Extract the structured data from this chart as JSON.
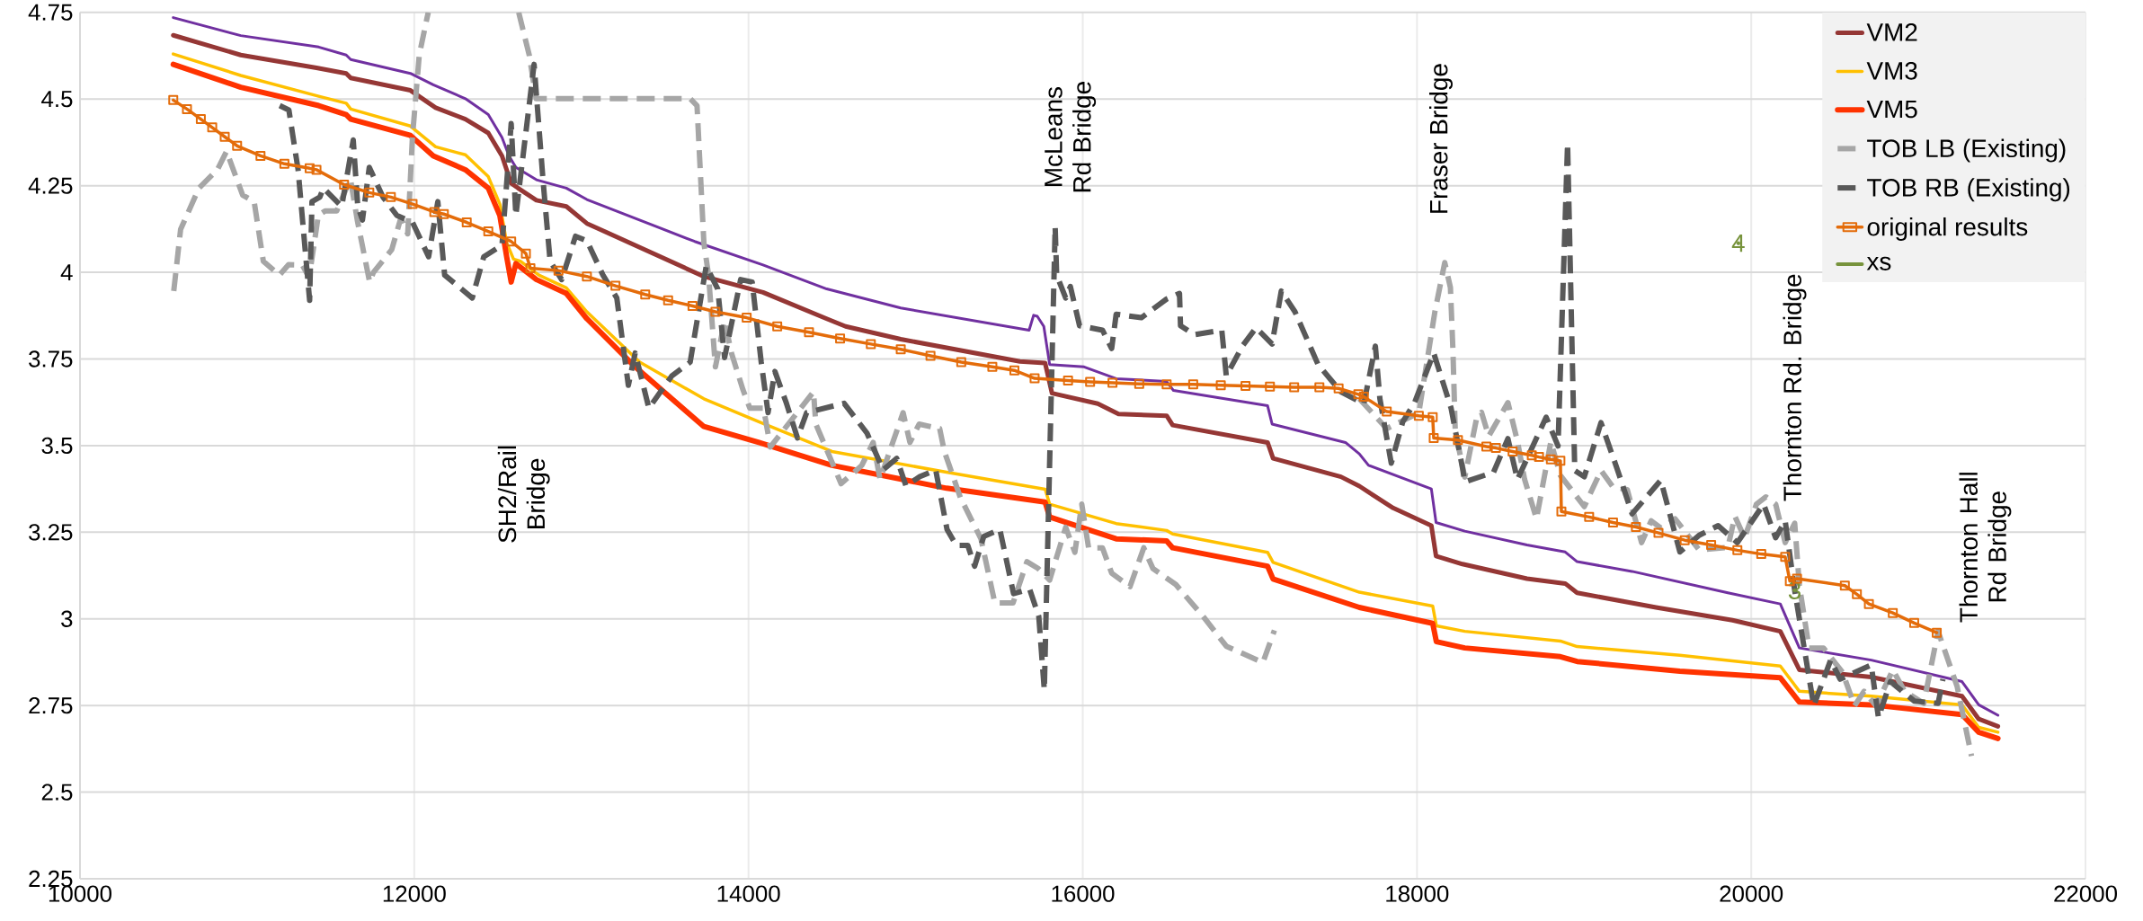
{
  "chart_data": {
    "type": "line",
    "xlim": [
      10000,
      22000
    ],
    "xticks": [
      10000,
      12000,
      14000,
      16000,
      18000,
      20000,
      22000
    ],
    "ylim": [
      2.25,
      4.75
    ],
    "yticks": [
      2.25,
      2.5,
      2.75,
      3,
      3.25,
      3.5,
      3.75,
      4,
      4.25,
      4.5,
      4.75
    ],
    "grid": true,
    "legend": "top right",
    "series": [
      {
        "color": "#7030a0",
        "line_style": "solid",
        "marker": "none",
        "x": [
          10558,
          10962,
          11428,
          11593,
          11620,
          11977,
          12114,
          12306,
          12443,
          12525,
          12567,
          12608,
          12731,
          12910,
          13033,
          13678,
          14087,
          14468,
          14911,
          15679,
          15706,
          15728,
          15767,
          15802,
          16008,
          16200,
          16502,
          16543,
          17106,
          17133,
          17572,
          17655,
          17710,
          18086,
          18114,
          18286,
          18658,
          18887,
          18958,
          19287,
          19860,
          20174,
          20288,
          20718,
          21261,
          21361,
          21476
        ],
        "values": [
          4.735,
          4.683,
          4.65,
          4.627,
          4.614,
          4.574,
          4.541,
          4.501,
          4.455,
          4.389,
          4.336,
          4.303,
          4.267,
          4.243,
          4.21,
          4.089,
          4.021,
          3.952,
          3.897,
          3.833,
          3.876,
          3.873,
          3.844,
          3.734,
          3.727,
          3.693,
          3.685,
          3.659,
          3.615,
          3.562,
          3.509,
          3.476,
          3.443,
          3.375,
          3.278,
          3.253,
          3.213,
          3.193,
          3.165,
          3.137,
          3.075,
          3.043,
          2.916,
          2.881,
          2.819,
          2.752,
          2.722
        ]
      },
      {
        "name": "VM2",
        "color": "#953735",
        "line_style": "solid",
        "marker": "none",
        "x": [
          10558,
          10962,
          11415,
          11593,
          11620,
          11977,
          12128,
          12306,
          12443,
          12525,
          12580,
          12621,
          12731,
          12910,
          13033,
          13733,
          14087,
          14468,
          14581,
          14911,
          15624,
          15775,
          15816,
          16090,
          16214,
          16502,
          16538,
          17106,
          17139,
          17545,
          17655,
          17857,
          18086,
          18114,
          18272,
          18658,
          18887,
          18958,
          19430,
          19888,
          20174,
          20288,
          20718,
          21261,
          21361,
          21476
        ],
        "values": [
          4.684,
          4.627,
          4.59,
          4.574,
          4.561,
          4.525,
          4.475,
          4.442,
          4.402,
          4.336,
          4.257,
          4.243,
          4.208,
          4.19,
          4.141,
          3.988,
          3.942,
          3.866,
          3.844,
          3.807,
          3.743,
          3.738,
          3.651,
          3.621,
          3.591,
          3.586,
          3.559,
          3.509,
          3.463,
          3.41,
          3.383,
          3.32,
          3.269,
          3.181,
          3.158,
          3.116,
          3.102,
          3.075,
          3.033,
          2.996,
          2.964,
          2.853,
          2.832,
          2.777,
          2.711,
          2.69
        ]
      },
      {
        "name": "VM3",
        "color": "#ffc000",
        "line_style": "solid",
        "marker": "none",
        "x": [
          10558,
          10962,
          11428,
          11593,
          11620,
          11977,
          12128,
          12306,
          12443,
          12512,
          12553,
          12594,
          12635,
          12745,
          12910,
          13033,
          13349,
          13733,
          14062,
          14499,
          15185,
          15775,
          15802,
          16200,
          16502,
          16538,
          17106,
          17139,
          17655,
          18094,
          18116,
          18286,
          18858,
          18958,
          19573,
          20174,
          20288,
          20718,
          21261,
          21361,
          21476
        ],
        "values": [
          4.63,
          4.568,
          4.508,
          4.488,
          4.471,
          4.422,
          4.362,
          4.339,
          4.276,
          4.197,
          4.085,
          4.038,
          4.032,
          3.992,
          3.955,
          3.886,
          3.741,
          3.635,
          3.569,
          3.483,
          3.423,
          3.374,
          3.331,
          3.275,
          3.255,
          3.245,
          3.192,
          3.163,
          3.077,
          3.037,
          2.98,
          2.964,
          2.936,
          2.92,
          2.895,
          2.864,
          2.791,
          2.777,
          2.752,
          2.687,
          2.673
        ]
      },
      {
        "name": "VM5",
        "color": "#ff3300",
        "line_style": "solid",
        "marker": "none",
        "x": [
          10558,
          10962,
          11428,
          11593,
          11620,
          11977,
          12114,
          12306,
          12443,
          12512,
          12553,
          12580,
          12608,
          12731,
          12910,
          13033,
          13322,
          13733,
          14062,
          14499,
          15185,
          15775,
          15802,
          16200,
          16502,
          16538,
          17106,
          17139,
          17655,
          18094,
          18116,
          18286,
          18858,
          18958,
          19573,
          20174,
          20288,
          20718,
          21261,
          21361,
          21476
        ],
        "values": [
          4.6,
          4.534,
          4.481,
          4.455,
          4.442,
          4.395,
          4.336,
          4.296,
          4.243,
          4.164,
          4.045,
          3.972,
          4.025,
          3.979,
          3.939,
          3.866,
          3.727,
          3.555,
          3.509,
          3.443,
          3.377,
          3.337,
          3.294,
          3.231,
          3.225,
          3.205,
          3.152,
          3.115,
          3.033,
          2.987,
          2.934,
          2.916,
          2.891,
          2.877,
          2.849,
          2.83,
          2.76,
          2.752,
          2.724,
          2.673,
          2.655
        ]
      },
      {
        "name": "TOB LB (Existing)",
        "color": "#a6a6a6",
        "line_style": "dashed",
        "marker": "none",
        "x": [
          10561,
          10602,
          10712,
          10822,
          10877,
          10973,
          11042,
          11097,
          11193,
          11248,
          11330,
          11371,
          11426,
          11467,
          11536,
          11618,
          11659,
          11733,
          11755,
          11865,
          11920,
          11961,
          11989,
          12030,
          12076,
          12084,
          12350,
          12625,
          12688,
          12729,
          13651,
          13692,
          13733,
          13761,
          13802,
          13857,
          13898,
          13967,
          14008,
          14090,
          14131,
          14389,
          14403,
          14554,
          14678,
          14746,
          14787,
          14925,
          14966,
          15021,
          15144,
          15172,
          15268,
          15391,
          15474,
          15583,
          15666,
          15734,
          15802,
          15898,
          15953,
          15994,
          16035,
          16118,
          16173,
          16283,
          16365,
          16420,
          16557,
          16722,
          16859,
          17078,
          17147,
          17400,
          17655,
          17819,
          18011,
          18107,
          18166,
          18200,
          18215,
          18229,
          18286,
          18358,
          18386,
          18429,
          18544,
          18601,
          18644,
          18715,
          18801,
          18858,
          19001,
          19101,
          19173,
          19258,
          19344,
          19401,
          19459,
          19544,
          19688,
          19860,
          19902,
          19960,
          20031,
          20088,
          20146,
          20203,
          20260,
          20288,
          20346,
          20432,
          20546,
          20618,
          20675,
          20747,
          20847,
          20918,
          21032,
          21118,
          21232,
          21318
        ],
        "values": [
          3.946,
          4.124,
          4.243,
          4.296,
          4.349,
          4.223,
          4.204,
          4.032,
          3.992,
          4.022,
          4.021,
          3.985,
          4.164,
          4.177,
          4.177,
          4.27,
          4.151,
          3.972,
          3.999,
          4.065,
          4.157,
          4.111,
          4.389,
          4.627,
          4.733,
          4.75,
          null,
          4.75,
          4.627,
          4.501,
          4.501,
          4.481,
          4.085,
          3.992,
          3.727,
          3.86,
          3.767,
          3.661,
          3.608,
          3.608,
          3.496,
          3.655,
          3.562,
          3.39,
          3.443,
          3.509,
          3.403,
          3.595,
          3.509,
          3.562,
          3.549,
          3.483,
          3.35,
          3.231,
          3.046,
          3.046,
          3.165,
          3.145,
          3.112,
          3.264,
          3.192,
          3.331,
          3.205,
          3.205,
          3.132,
          3.093,
          3.205,
          3.145,
          3.099,
          3.006,
          2.921,
          2.874,
          2.967,
          null,
          3.635,
          3.549,
          3.595,
          3.886,
          4.028,
          3.956,
          3.776,
          3.541,
          3.409,
          3.582,
          3.596,
          3.527,
          3.624,
          3.513,
          3.402,
          3.289,
          3.511,
          3.414,
          3.324,
          3.428,
          3.38,
          3.373,
          3.22,
          3.283,
          3.262,
          3.289,
          3.199,
          3.206,
          3.296,
          3.234,
          3.331,
          3.352,
          3.331,
          3.22,
          3.276,
          3.096,
          2.916,
          2.916,
          2.846,
          2.749,
          2.791,
          2.749,
          2.853,
          2.791,
          2.756,
          2.964,
          2.805,
          2.604
        ]
      },
      {
        "name": "TOB RB (Existing)",
        "color": "#595959",
        "line_style": "dashed",
        "marker": "none",
        "x": [
          11195,
          11250,
          11305,
          11374,
          11388,
          11435,
          11456,
          11566,
          11635,
          11662,
          11690,
          11731,
          11813,
          11896,
          11990,
          12086,
          12141,
          12182,
          12347,
          12416,
          12525,
          12580,
          12608,
          12717,
          12772,
          12813,
          12882,
          12965,
          13033,
          13129,
          13212,
          13281,
          13322,
          13404,
          13541,
          13651,
          13747,
          13816,
          13857,
          13953,
          14022,
          14076,
          14117,
          14158,
          14227,
          14293,
          14348,
          14572,
          14709,
          14805,
          14887,
          14942,
          15024,
          15120,
          15188,
          15243,
          15312,
          15353,
          15408,
          15504,
          15586,
          15682,
          15737,
          15770,
          15835,
          15844,
          15898,
          15926,
          15981,
          16118,
          16173,
          16200,
          16351,
          16502,
          16579,
          16585,
          16667,
          16832,
          16859,
          16955,
          17037,
          17133,
          17188,
          17270,
          17408,
          17545,
          17682,
          17751,
          17778,
          17846,
          17915,
          17984,
          18100,
          18204,
          18272,
          18286,
          18458,
          18544,
          18601,
          18773,
          18844,
          18901,
          18944,
          19001,
          19101,
          19201,
          19287,
          19459,
          19573,
          19688,
          19802,
          19917,
          20074,
          20146,
          20203,
          20260,
          20374,
          20475,
          20532,
          20718,
          20761,
          20833,
          20975,
          21118,
          21147
        ],
        "values": [
          4.481,
          4.468,
          4.296,
          3.919,
          4.204,
          4.217,
          4.243,
          4.19,
          4.382,
          4.19,
          4.151,
          4.303,
          4.217,
          4.164,
          4.144,
          4.045,
          4.204,
          3.992,
          3.926,
          4.045,
          4.078,
          4.429,
          4.164,
          4.6,
          4.257,
          4.032,
          3.979,
          4.104,
          4.091,
          3.992,
          3.926,
          3.674,
          3.767,
          3.608,
          3.701,
          3.741,
          4.018,
          3.952,
          3.754,
          3.979,
          3.972,
          3.741,
          3.595,
          3.714,
          3.622,
          3.522,
          3.595,
          3.622,
          3.536,
          3.43,
          3.463,
          3.384,
          3.41,
          3.43,
          3.258,
          3.212,
          3.212,
          3.152,
          3.238,
          3.258,
          3.073,
          3.086,
          3.007,
          2.795,
          4.131,
          3.992,
          3.926,
          3.959,
          3.846,
          3.833,
          3.78,
          3.879,
          3.869,
          3.923,
          3.939,
          3.846,
          3.82,
          3.833,
          3.701,
          3.787,
          3.84,
          3.793,
          3.946,
          3.886,
          3.734,
          3.655,
          3.621,
          3.787,
          3.635,
          3.449,
          3.569,
          3.622,
          3.767,
          3.608,
          3.436,
          3.395,
          3.423,
          3.52,
          3.402,
          3.582,
          3.499,
          4.372,
          3.428,
          3.41,
          3.566,
          3.428,
          3.303,
          3.4,
          3.193,
          3.241,
          3.269,
          3.22,
          3.331,
          3.234,
          3.283,
          3.082,
          2.749,
          2.881,
          2.826,
          2.867,
          2.715,
          2.819,
          2.763,
          2.756,
          2.826
        ]
      },
      {
        "name": "original results",
        "color": "#e46c0a",
        "line_style": "solid",
        "marker": "square",
        "x": [
          10558,
          10640,
          10723,
          10791,
          10866,
          10940,
          11080,
          11223,
          11374,
          11415,
          11580,
          11731,
          11860,
          11990,
          12120,
          12177,
          12314,
          12443,
          12580,
          12668,
          12695,
          12863,
          13033,
          13204,
          13382,
          13519,
          13665,
          13802,
          13989,
          14172,
          14362,
          14548,
          14732,
          14911,
          15089,
          15273,
          15459,
          15591,
          15712,
          15912,
          16044,
          16178,
          16338,
          16502,
          16661,
          16826,
          16974,
          17120,
          17265,
          17416,
          17531,
          17649,
          17682,
          17819,
          18011,
          18094,
          18100,
          18245,
          18415,
          18472,
          18572,
          18687,
          18730,
          18801,
          18858,
          18864,
          19030,
          19173,
          19310,
          19445,
          19602,
          19760,
          19917,
          20060,
          20203,
          20231,
          20274,
          20560,
          20632,
          20704,
          20847,
          20975,
          21110
        ],
        "values": [
          4.497,
          4.471,
          4.442,
          4.418,
          4.391,
          4.365,
          4.336,
          4.313,
          4.3,
          4.296,
          4.253,
          4.23,
          4.217,
          4.197,
          4.174,
          4.168,
          4.144,
          4.118,
          4.089,
          4.054,
          4.012,
          4.005,
          3.988,
          3.961,
          3.936,
          3.919,
          3.903,
          3.886,
          3.869,
          3.844,
          3.827,
          3.809,
          3.793,
          3.778,
          3.759,
          3.741,
          3.727,
          3.717,
          3.694,
          3.688,
          3.684,
          3.681,
          3.678,
          3.677,
          3.677,
          3.674,
          3.672,
          3.67,
          3.668,
          3.668,
          3.665,
          3.648,
          3.641,
          3.598,
          3.586,
          3.582,
          3.522,
          3.516,
          3.497,
          3.493,
          3.483,
          3.472,
          3.467,
          3.46,
          3.456,
          3.31,
          3.294,
          3.278,
          3.265,
          3.248,
          3.227,
          3.213,
          3.198,
          3.187,
          3.179,
          3.109,
          3.116,
          3.096,
          3.071,
          3.043,
          3.017,
          2.988,
          2.96
        ]
      },
      {
        "name": "xs",
        "color": "#77933c",
        "type": "scatter",
        "marker": "none",
        "x": [
          19923,
          20260
        ],
        "values": [
          4.084,
          3.082
        ],
        "value_labels": [
          "4",
          "3"
        ]
      }
    ],
    "annotations": [
      "SH2/Rail Bridge",
      "McLeans Rd Bridge",
      "Fraser Bridge",
      "Thornton Rd. Bridge",
      "Thornton Hall Rd Bridge"
    ]
  }
}
